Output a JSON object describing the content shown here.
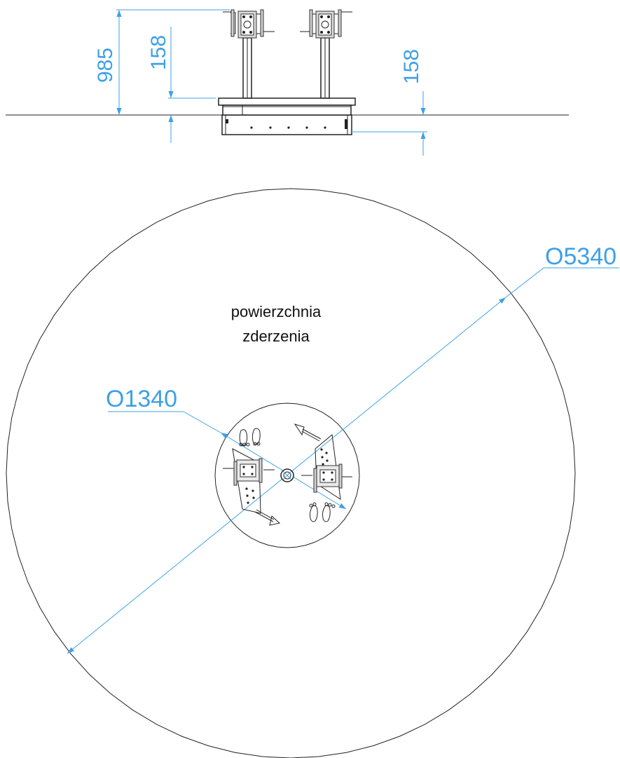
{
  "colors": {
    "dimension": "#3ea0e6",
    "ink": "#222222",
    "background": "#ffffff"
  },
  "elevation": {
    "height_label": "985",
    "platform_height_label": "158",
    "foundation_depth_label": "158"
  },
  "plan": {
    "outer_diameter_label": "O5340",
    "inner_diameter_label": "O1340",
    "zone_label_line1": "powierzchnia",
    "zone_label_line2": "zderzenia"
  }
}
